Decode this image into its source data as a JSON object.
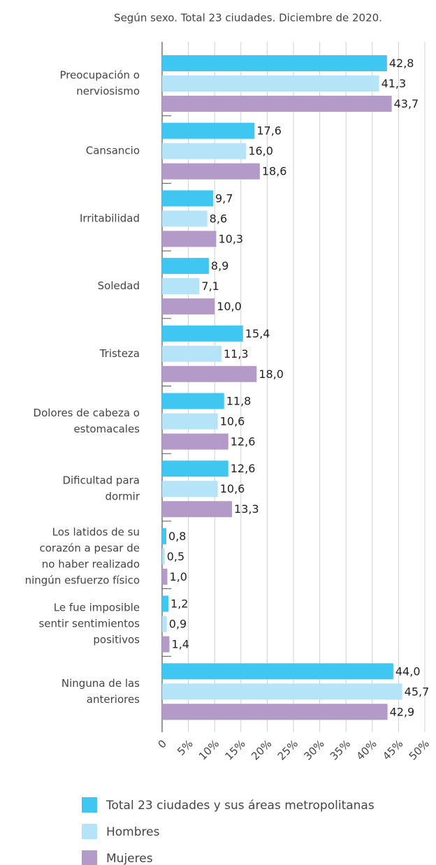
{
  "chart_data": {
    "type": "hbar",
    "subtitle": "Según sexo. Total 23 ciudades. Diciembre de 2020.",
    "categories": [
      "Preocupación o\nnerviosismo",
      "Cansancio",
      "Irritabilidad",
      "Soledad",
      "Tristeza",
      "Dolores de cabeza o\nestomacales",
      "Dificultad para\ndormir",
      "Los latidos de su\ncorazón a pesar de\nno haber realizado\nningún esfuerzo físico",
      "Le fue imposible\nsentir sentimientos\npositivos",
      "Ninguna de las\nanteriores"
    ],
    "series": [
      {
        "name": "Total 23 ciudades y sus áreas metropolitanas",
        "color": "#3fc7f2",
        "values": [
          42.8,
          17.6,
          9.7,
          8.9,
          15.4,
          11.8,
          12.6,
          0.8,
          1.2,
          44.0
        ],
        "value_labels": [
          "42,8",
          "17,6",
          "9,7",
          "8,9",
          "15,4",
          "11,8",
          "12,6",
          "0,8",
          "1,2",
          "44,0"
        ]
      },
      {
        "name": "Hombres",
        "color": "#b5e3f8",
        "values": [
          41.3,
          16.0,
          8.6,
          7.1,
          11.3,
          10.6,
          10.6,
          0.5,
          0.9,
          45.7
        ],
        "value_labels": [
          "41,3",
          "16,0",
          "8,6",
          "7,1",
          "11,3",
          "10,6",
          "10,6",
          "0,5",
          "0,9",
          "45,7"
        ]
      },
      {
        "name": "Mujeres",
        "color": "#b49ac9",
        "values": [
          43.7,
          18.6,
          10.3,
          10.0,
          18.0,
          12.6,
          13.3,
          1.0,
          1.4,
          42.9
        ],
        "value_labels": [
          "43,7",
          "18,6",
          "10,3",
          "10,0",
          "18,0",
          "12,6",
          "13,3",
          "1,0",
          "1,4",
          "42,9"
        ]
      }
    ],
    "xlim": [
      0,
      50
    ],
    "xticks": [
      0,
      {
        "value": 5,
        "label": "5%"
      },
      {
        "value": 10,
        "label": "10%"
      },
      {
        "value": 15,
        "label": "15%"
      },
      {
        "value": 20,
        "label": "20%"
      },
      {
        "value": 25,
        "label": "25%"
      },
      {
        "value": 30,
        "label": "30%"
      },
      {
        "value": 35,
        "label": "35%"
      },
      {
        "value": 40,
        "label": "40%"
      },
      {
        "value": 45,
        "label": "45%"
      },
      {
        "value": 50,
        "label": "50%"
      }
    ],
    "grid": true
  }
}
